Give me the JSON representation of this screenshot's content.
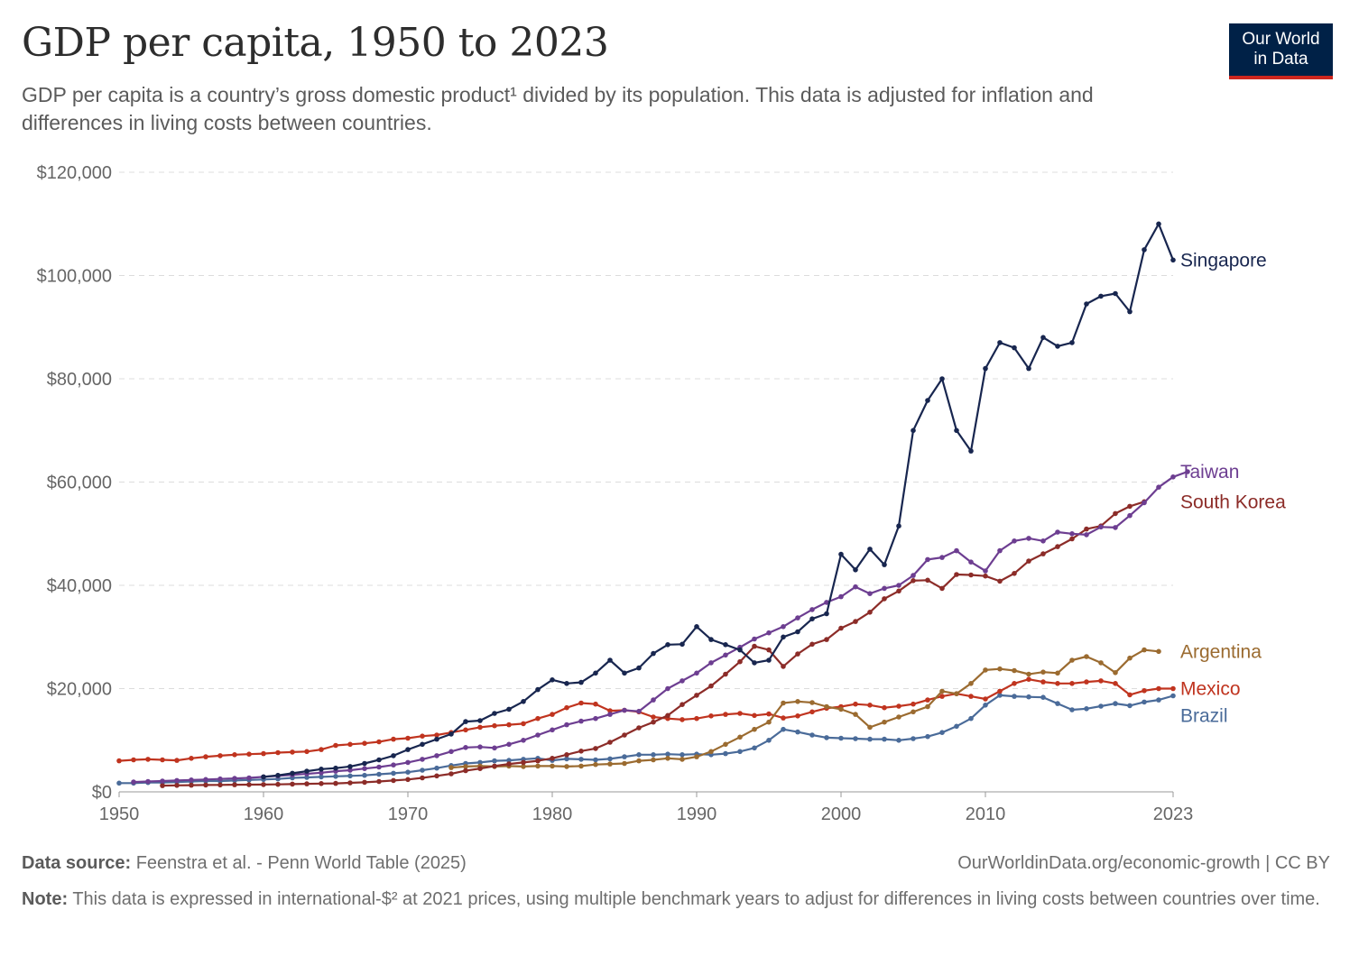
{
  "header": {
    "title": "GDP per capita, 1950 to 2023",
    "subtitle": "GDP per capita is a country’s gross domestic product¹ divided by its population. This data is adjusted for inflation and differences in living costs between countries."
  },
  "logo": {
    "line1": "Our World",
    "line2": "in Data",
    "bg_color": "#002147",
    "accent_color": "#ce261e"
  },
  "footer": {
    "source_label": "Data source:",
    "source_text": "Feenstra et al. - Penn World Table (2025)",
    "link": "OurWorldinData.org/economic-growth | CC BY",
    "note_label": "Note:",
    "note_text": "This data is expressed in international-$² at 2021 prices, using multiple benchmark years to adjust for differences in living costs between countries over time."
  },
  "chart_data": {
    "type": "line",
    "title": "GDP per capita, 1950 to 2023",
    "xlim": [
      1950,
      2023
    ],
    "ylim": [
      0,
      120000
    ],
    "x_ticks": [
      1950,
      1960,
      1970,
      1980,
      1990,
      2000,
      2010,
      2023
    ],
    "x_tick_labels": [
      "1950",
      "1960",
      "1970",
      "1980",
      "1990",
      "2000",
      "2010",
      "2023"
    ],
    "y_ticks": [
      0,
      20000,
      40000,
      60000,
      80000,
      100000,
      120000
    ],
    "y_tick_labels": [
      "$0",
      "$20,000",
      "$40,000",
      "$60,000",
      "$80,000",
      "$100,000",
      "$120,000"
    ],
    "grid": "horizontal dashed",
    "legend": "labels at line ends (right)",
    "series": [
      {
        "name": "Singapore",
        "color": "#18264f",
        "start_year": 1960,
        "values": [
          2900,
          3200,
          3600,
          4000,
          4400,
          4600,
          4900,
          5500,
          6200,
          7000,
          8200,
          9200,
          10200,
          11200,
          13600,
          13800,
          15200,
          16000,
          17500,
          19800,
          21700,
          21000,
          21200,
          23000,
          25500,
          23000,
          24000,
          26800,
          28500,
          28600,
          32000,
          29500,
          28500,
          27500,
          25000,
          25500,
          30000,
          31000,
          33500,
          34500,
          46000,
          43000,
          47000,
          44000,
          51500,
          70000,
          75800,
          80000,
          70000,
          66000,
          82000,
          87000,
          86000,
          82000,
          88000,
          86300,
          87000,
          94500,
          96000,
          96500,
          93000,
          105000,
          110000,
          103000
        ]
      },
      {
        "name": "Taiwan",
        "color": "#6d3e91",
        "start_year": 1951,
        "values": [
          1900,
          2000,
          2100,
          2200,
          2300,
          2400,
          2500,
          2600,
          2700,
          2900,
          3100,
          3300,
          3500,
          3700,
          4000,
          4200,
          4500,
          4800,
          5200,
          5700,
          6300,
          7000,
          7800,
          8600,
          8700,
          8500,
          9200,
          10000,
          11000,
          12000,
          13000,
          13700,
          14200,
          15000,
          15800,
          15600,
          17800,
          20000,
          21500,
          23000,
          25000,
          26500,
          28000,
          29600,
          30800,
          32000,
          33700,
          35300,
          36700,
          37800,
          39700,
          38400,
          39400,
          40000,
          41900,
          45000,
          45400,
          46700,
          44500,
          42800,
          46700,
          48600,
          49100,
          48600,
          50300,
          50000,
          49800,
          51300,
          51200,
          53500,
          56000,
          59000,
          61000,
          62000
        ]
      },
      {
        "name": "South Korea",
        "color": "#8c2c28",
        "start_year": 1953,
        "values": [
          1200,
          1250,
          1300,
          1320,
          1350,
          1380,
          1400,
          1420,
          1450,
          1500,
          1550,
          1600,
          1650,
          1750,
          1850,
          2000,
          2200,
          2400,
          2700,
          3100,
          3500,
          4100,
          4500,
          5000,
          5400,
          5700,
          6000,
          6500,
          7200,
          7900,
          8400,
          9600,
          11000,
          12400,
          13500,
          14800,
          16900,
          18700,
          20500,
          22800,
          25200,
          28200,
          27500,
          24300,
          26700,
          28600,
          29500,
          31700,
          33000,
          34800,
          37400,
          38900,
          40900,
          41000,
          39400,
          42100,
          42000,
          41800,
          40800,
          42300,
          44700,
          46100,
          47500,
          49000,
          50900,
          51500,
          53900,
          55300,
          56200
        ]
      },
      {
        "name": "Argentina",
        "color": "#9b6b30",
        "start_year": 1973,
        "values": [
          4700,
          4900,
          5000,
          4900,
          5000,
          4900,
          5000,
          5000,
          4900,
          5000,
          5300,
          5400,
          5500,
          6000,
          6200,
          6500,
          6300,
          6800,
          7800,
          9200,
          10600,
          12100,
          13500,
          17200,
          17500,
          17300,
          16500,
          16000,
          15000,
          12500,
          13500,
          14500,
          15500,
          16500,
          19500,
          19000,
          21000,
          23600,
          23800,
          23500,
          22800,
          23200,
          23000,
          25500,
          26200,
          25000,
          23100,
          25900,
          27500,
          27200
        ]
      },
      {
        "name": "Mexico",
        "color": "#c0341f",
        "start_year": 1950,
        "values": [
          6000,
          6200,
          6300,
          6200,
          6100,
          6500,
          6800,
          7000,
          7200,
          7300,
          7400,
          7600,
          7700,
          7800,
          8200,
          9000,
          9200,
          9400,
          9700,
          10200,
          10400,
          10800,
          11000,
          11500,
          12000,
          12500,
          12800,
          13000,
          13200,
          14200,
          15000,
          16300,
          17200,
          17000,
          15700,
          15800,
          15500,
          14500,
          14200,
          14000,
          14200,
          14700,
          15000,
          15200,
          14800,
          15100,
          14300,
          14700,
          15500,
          16200,
          16500,
          17000,
          16800,
          16300,
          16600,
          17000,
          17800,
          18500,
          19000,
          18500,
          18000,
          19500,
          21000,
          21800,
          21300,
          21000,
          21000,
          21300,
          21500,
          21000,
          18800,
          19600,
          20000,
          20000
        ]
      },
      {
        "name": "Brazil",
        "color": "#4a6b99",
        "start_year": 1950,
        "values": [
          1700,
          1700,
          1800,
          1800,
          1900,
          2000,
          2100,
          2100,
          2200,
          2300,
          2400,
          2500,
          2700,
          2800,
          2900,
          3000,
          3100,
          3200,
          3400,
          3600,
          3800,
          4200,
          4600,
          5100,
          5500,
          5700,
          6000,
          6100,
          6300,
          6500,
          6100,
          6400,
          6300,
          6200,
          6400,
          6800,
          7200,
          7200,
          7300,
          7200,
          7300,
          7200,
          7400,
          7800,
          8500,
          10000,
          12100,
          11600,
          11000,
          10500,
          10400,
          10300,
          10200,
          10200,
          10000,
          10300,
          10700,
          11500,
          12700,
          14200,
          16800,
          18700,
          18500,
          18400,
          18300,
          17100,
          15900,
          16100,
          16600,
          17100,
          16700,
          17400,
          17800,
          18600
        ]
      }
    ]
  }
}
